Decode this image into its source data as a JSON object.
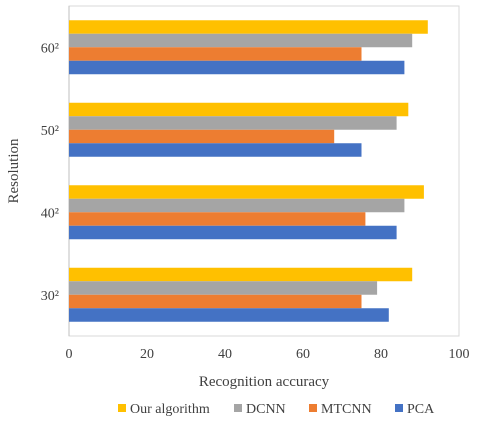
{
  "chart_data": {
    "type": "bar",
    "orientation": "horizontal",
    "title": "",
    "xlabel": "Recognition accuracy",
    "ylabel": "Resolution",
    "xlim": [
      0,
      100
    ],
    "xticks": [
      "0",
      "20",
      "40",
      "60",
      "80",
      "100"
    ],
    "grid": false,
    "legend_position": "bottom",
    "categories": [
      "30²",
      "40²",
      "50²",
      "60²"
    ],
    "series": [
      {
        "name": "Our algorithm",
        "color": "#FFC000",
        "values": [
          88,
          91,
          87,
          92
        ]
      },
      {
        "name": "DCNN",
        "color": "#A5A5A5",
        "values": [
          79,
          86,
          84,
          88
        ]
      },
      {
        "name": "MTCNN",
        "color": "#ED7D31",
        "values": [
          75,
          76,
          68,
          75
        ]
      },
      {
        "name": "PCA",
        "color": "#4472C4",
        "values": [
          82,
          84,
          75,
          86
        ]
      }
    ]
  }
}
